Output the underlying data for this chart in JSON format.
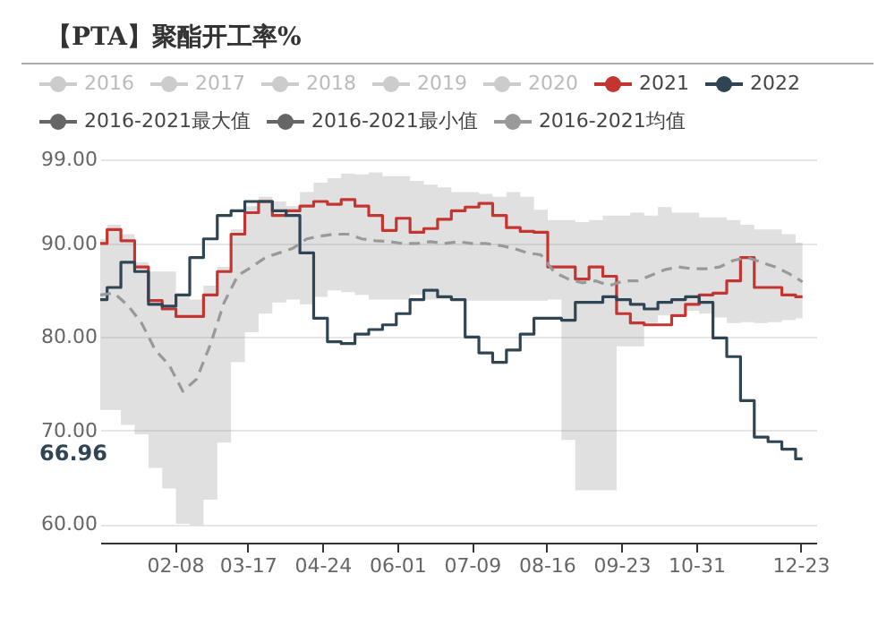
{
  "chart_data": {
    "type": "step",
    "title": "【PTA】聚酯开工率%",
    "x": [
      "--01-01",
      "--01-08",
      "--01-15",
      "--01-22",
      "--01-29",
      "--02-05",
      "--02-12",
      "--02-19",
      "--02-26",
      "--03-05",
      "--03-12",
      "--03-19",
      "--03-26",
      "--04-02",
      "--04-09",
      "--04-16",
      "--04-23",
      "--04-30",
      "--05-07",
      "--05-14",
      "--05-21",
      "--05-28",
      "--06-04",
      "--06-11",
      "--06-18",
      "--06-25",
      "--07-02",
      "--07-09",
      "--07-16",
      "--07-23",
      "--07-30",
      "--08-06",
      "--08-13",
      "--08-20",
      "--08-27",
      "--09-03",
      "--09-10",
      "--09-17",
      "--09-24",
      "--10-01",
      "--10-08",
      "--10-15",
      "--10-22",
      "--10-29",
      "--11-05",
      "--11-12",
      "--11-19",
      "--11-26",
      "--12-03",
      "--12-10",
      "--12-17",
      "--12-24"
    ],
    "series": [
      {
        "name": "2016",
        "color": "#cccccc",
        "values": [
          null,
          null,
          null,
          null,
          null,
          null,
          null,
          null,
          null,
          null,
          null,
          null,
          null,
          null,
          null,
          null,
          null,
          null,
          null,
          null,
          null,
          null,
          null,
          null,
          null,
          null,
          null,
          null,
          null,
          null,
          null,
          null,
          null,
          null,
          null,
          null,
          null,
          null,
          null,
          null,
          null,
          null,
          null,
          null,
          null,
          null,
          null,
          null,
          null,
          null,
          null,
          null
        ]
      },
      {
        "name": "2017",
        "color": "#cccccc",
        "values": [
          null,
          null,
          null,
          null,
          null,
          null,
          null,
          null,
          null,
          null,
          null,
          null,
          null,
          null,
          null,
          null,
          null,
          null,
          null,
          null,
          null,
          null,
          null,
          null,
          null,
          null,
          null,
          null,
          null,
          null,
          null,
          null,
          null,
          null,
          null,
          null,
          null,
          null,
          null,
          null,
          null,
          null,
          null,
          null,
          null,
          null,
          null,
          null,
          null,
          null,
          null,
          null
        ]
      },
      {
        "name": "2018",
        "color": "#cccccc",
        "values": [
          null,
          null,
          null,
          null,
          null,
          null,
          null,
          null,
          null,
          null,
          null,
          null,
          null,
          null,
          null,
          null,
          null,
          null,
          null,
          null,
          null,
          null,
          null,
          null,
          null,
          null,
          null,
          null,
          null,
          null,
          null,
          null,
          null,
          null,
          null,
          null,
          null,
          null,
          null,
          null,
          null,
          null,
          null,
          null,
          null,
          null,
          null,
          null,
          null,
          null,
          null,
          null
        ]
      },
      {
        "name": "2019",
        "color": "#cccccc",
        "values": [
          null,
          null,
          null,
          null,
          null,
          null,
          null,
          null,
          null,
          null,
          null,
          null,
          null,
          null,
          null,
          null,
          null,
          null,
          null,
          null,
          null,
          null,
          null,
          null,
          null,
          null,
          null,
          null,
          null,
          null,
          null,
          null,
          null,
          null,
          null,
          null,
          null,
          null,
          null,
          null,
          null,
          null,
          null,
          null,
          null,
          null,
          null,
          null,
          null,
          null,
          null,
          null
        ]
      },
      {
        "name": "2020",
        "color": "#cccccc",
        "values": [
          null,
          null,
          null,
          null,
          null,
          null,
          null,
          null,
          null,
          null,
          null,
          null,
          null,
          null,
          null,
          null,
          null,
          null,
          null,
          null,
          null,
          null,
          null,
          null,
          null,
          null,
          null,
          null,
          null,
          null,
          null,
          null,
          null,
          null,
          null,
          null,
          null,
          null,
          null,
          null,
          null,
          null,
          null,
          null,
          null,
          null,
          null,
          null,
          null,
          null,
          null,
          null
        ]
      },
      {
        "name": "2021",
        "color": "#c23531",
        "values": [
          90,
          91.5,
          90.3,
          87.5,
          83.9,
          83,
          82.2,
          82.2,
          84.5,
          87,
          91,
          93.3,
          94.5,
          93,
          93.5,
          94,
          94.5,
          94.2,
          94.7,
          94,
          93,
          91.4,
          92.7,
          91.2,
          91.6,
          92.6,
          93.5,
          93.9,
          94.3,
          93,
          91.7,
          91.3,
          91.2,
          87.5,
          87.5,
          86.2,
          87.5,
          86.5,
          82.5,
          81.5,
          81.3,
          81.3,
          82.3,
          83.5,
          84.5,
          84.7,
          86,
          88.5,
          85.3,
          85.3,
          84.5,
          84.3
        ]
      },
      {
        "name": "2022",
        "color": "#2f4554",
        "values": [
          84,
          85.3,
          88,
          87,
          83.5,
          83.3,
          84.5,
          88.5,
          90.5,
          93,
          93.5,
          94.5,
          94.5,
          93.5,
          93,
          89,
          82,
          79.5,
          79.3,
          80.3,
          80.8,
          81.3,
          82.5,
          84,
          85,
          84.3,
          84,
          80,
          78.3,
          77.3,
          78.6,
          80.3,
          82,
          82,
          81.8,
          83.7,
          83.7,
          84.3,
          84,
          83.5,
          83,
          83.7,
          84,
          84.3,
          83.7,
          79.9,
          77.9,
          73.2,
          69.3,
          68.8,
          68,
          66.96
        ]
      },
      {
        "name": "2016-2021最大值",
        "color": "#666666",
        "values": [
          null,
          null,
          null,
          null,
          null,
          null,
          null,
          null,
          null,
          null,
          null,
          null,
          null,
          null,
          null,
          null,
          null,
          null,
          null,
          null,
          null,
          null,
          null,
          null,
          null,
          null,
          null,
          null,
          null,
          null,
          null,
          null,
          null,
          null,
          null,
          null,
          null,
          null,
          null,
          null,
          null,
          null,
          null,
          null,
          null,
          null,
          null,
          null,
          null,
          null,
          null,
          null
        ]
      },
      {
        "name": "2016-2021最小值",
        "color": "#666666",
        "values": [
          null,
          null,
          null,
          null,
          null,
          null,
          null,
          null,
          null,
          null,
          null,
          null,
          null,
          null,
          null,
          null,
          null,
          null,
          null,
          null,
          null,
          null,
          null,
          null,
          null,
          null,
          null,
          null,
          null,
          null,
          null,
          null,
          null,
          null,
          null,
          null,
          null,
          null,
          null,
          null,
          null,
          null,
          null,
          null,
          null,
          null,
          null,
          null,
          null,
          null,
          null,
          null
        ]
      },
      {
        "name": "2016-2021均值",
        "type": "line",
        "color": "#999999",
        "line_style": "dashed",
        "values": [
          84.5,
          84.7,
          83.4,
          81.5,
          78.6,
          77,
          74.2,
          75.5,
          79.2,
          83.7,
          86.6,
          87.5,
          88.5,
          89,
          89.5,
          90.5,
          90.8,
          91,
          91,
          90.5,
          90.3,
          90.2,
          90,
          90,
          90.2,
          90,
          90.2,
          90,
          90,
          89.8,
          89.5,
          89,
          88.8,
          86.9,
          86.2,
          85.8,
          86,
          85.5,
          86,
          86,
          86.6,
          87.2,
          87.5,
          87.3,
          87.3,
          87.5,
          88.2,
          88.5,
          88,
          87.5,
          86.8,
          85.9
        ],
        "upper": [
          90.5,
          92,
          91,
          88,
          87,
          87,
          84.5,
          84,
          85.5,
          87.5,
          91.5,
          94,
          95,
          94.5,
          94,
          95.5,
          96.5,
          97,
          97.5,
          97.4,
          97.6,
          97.2,
          97.2,
          96.7,
          96.3,
          96,
          95.5,
          95.5,
          95.3,
          95,
          95.5,
          95,
          93.6,
          92.5,
          92.5,
          92.3,
          92.5,
          93,
          93,
          93.3,
          93,
          93.9,
          93.3,
          93.3,
          92.8,
          92.8,
          92.5,
          92,
          91.5,
          91.5,
          91,
          90.1
        ],
        "lower": [
          72.2,
          72.2,
          70.6,
          69.6,
          66,
          63.8,
          60,
          59.9,
          62.6,
          68.7,
          77.3,
          80.5,
          82.5,
          83.7,
          84,
          83.5,
          84.3,
          85,
          84.8,
          84.5,
          84,
          84,
          84,
          84.5,
          84,
          84,
          83.9,
          83.9,
          83.9,
          83.9,
          83.9,
          83.9,
          83.9,
          84,
          69,
          63.6,
          63.6,
          63.6,
          79,
          79,
          81.5,
          82.3,
          82.5,
          82.8,
          82.5,
          82.1,
          81.5,
          81.6,
          81.5,
          81.6,
          81.8,
          82
        ]
      }
    ],
    "xlim": [
      "--01-01",
      "--12-31"
    ],
    "xticks": [
      {
        "value": "--02-08",
        "label": "02-08"
      },
      {
        "value": "--03-17",
        "label": "03-17"
      },
      {
        "value": "--04-24",
        "label": "04-24"
      },
      {
        "value": "--06-01",
        "label": "06-01"
      },
      {
        "value": "--07-09",
        "label": "07-09"
      },
      {
        "value": "--08-16",
        "label": "08-16"
      },
      {
        "value": "--09-23",
        "label": "09-23"
      },
      {
        "value": "--10-31",
        "label": "10-31"
      },
      {
        "value": "--12-23",
        "label": "12-23"
      }
    ],
    "ylim": [
      58,
      99
    ],
    "yticks": [
      {
        "value": 60,
        "label": "60.00"
      },
      {
        "value": 70,
        "label": "70.00"
      },
      {
        "value": 80,
        "label": "80.00"
      },
      {
        "value": 90,
        "label": "90.00"
      },
      {
        "value": 99,
        "label": "99.00"
      }
    ],
    "annotations": [
      "66.96"
    ],
    "grid": "y",
    "legend": "top"
  }
}
